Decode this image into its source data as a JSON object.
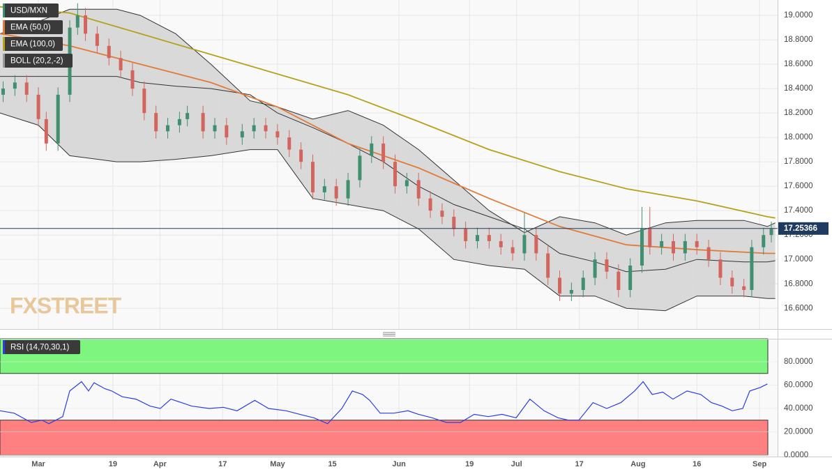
{
  "chart_data": [
    {
      "type": "candlestick",
      "symbol": "USD/MXN",
      "up_color": "#3f8f70",
      "down_color": "#d2665e",
      "x": [
        -9,
        -6,
        -3,
        0,
        2,
        5,
        8,
        10,
        12,
        15,
        18,
        21,
        24,
        27,
        30,
        33,
        36,
        38,
        42,
        45,
        48,
        52,
        55,
        58,
        61,
        64,
        67,
        70,
        73,
        76,
        79,
        82,
        85,
        88,
        91,
        94,
        97,
        100,
        103,
        106,
        109,
        112,
        115,
        118,
        121,
        124,
        127,
        130,
        133,
        136,
        139,
        142,
        145,
        148,
        151,
        154,
        156,
        159,
        162,
        165,
        168,
        171,
        174,
        177,
        180,
        182,
        185,
        187
      ],
      "open": [
        18.35,
        18.4,
        18.45,
        18.35,
        18.15,
        17.95,
        18.35,
        18.9,
        19.0,
        18.85,
        18.75,
        18.65,
        18.55,
        18.4,
        18.2,
        18.05,
        18.1,
        18.15,
        18.2,
        18.05,
        18.1,
        18.0,
        18.05,
        18.1,
        18.05,
        18.0,
        17.9,
        17.8,
        17.55,
        17.6,
        17.5,
        17.65,
        17.85,
        17.95,
        17.8,
        17.6,
        17.65,
        17.5,
        17.4,
        17.35,
        17.25,
        17.15,
        17.2,
        17.15,
        17.1,
        17.05,
        17.2,
        17.05,
        16.85,
        16.72,
        16.75,
        16.85,
        17.0,
        16.9,
        16.75,
        16.95,
        17.25,
        17.1,
        17.15,
        17.05,
        17.15,
        17.1,
        17.0,
        16.85,
        16.78,
        16.75,
        17.1,
        17.2
      ],
      "high": [
        18.46,
        18.51,
        18.51,
        18.41,
        18.21,
        18.41,
        18.96,
        19.1,
        19.06,
        18.91,
        18.81,
        18.71,
        18.61,
        18.46,
        18.26,
        18.16,
        18.21,
        18.26,
        18.26,
        18.16,
        18.16,
        18.11,
        18.16,
        18.16,
        18.11,
        18.06,
        17.96,
        17.86,
        17.66,
        17.66,
        17.71,
        17.91,
        18.01,
        18.01,
        17.86,
        17.71,
        17.71,
        17.56,
        17.46,
        17.41,
        17.31,
        17.26,
        17.26,
        17.21,
        17.16,
        17.38,
        17.26,
        17.11,
        16.91,
        16.81,
        16.91,
        17.06,
        17.06,
        16.96,
        17.01,
        17.43,
        17.43,
        17.21,
        17.21,
        17.21,
        17.21,
        17.16,
        17.06,
        16.91,
        16.84,
        17.16,
        17.26,
        17.31
      ],
      "low": [
        18.29,
        18.34,
        18.29,
        18.09,
        17.89,
        17.89,
        18.29,
        18.84,
        18.79,
        18.69,
        18.59,
        18.49,
        18.34,
        18.14,
        17.99,
        17.99,
        18.04,
        18.09,
        17.99,
        17.99,
        17.94,
        17.94,
        17.99,
        17.99,
        17.94,
        17.84,
        17.74,
        17.49,
        17.49,
        17.44,
        17.44,
        17.59,
        17.79,
        17.74,
        17.54,
        17.54,
        17.44,
        17.34,
        17.29,
        17.19,
        17.09,
        17.09,
        17.09,
        17.04,
        16.99,
        16.99,
        16.99,
        16.79,
        16.66,
        16.66,
        16.69,
        16.79,
        16.84,
        16.69,
        16.69,
        16.89,
        17.04,
        17.04,
        16.99,
        16.99,
        17.04,
        16.94,
        16.79,
        16.72,
        16.69,
        16.69,
        17.04,
        17.14
      ],
      "close": [
        18.4,
        18.45,
        18.35,
        18.15,
        17.95,
        18.35,
        18.9,
        19.0,
        18.85,
        18.75,
        18.65,
        18.55,
        18.4,
        18.2,
        18.05,
        18.1,
        18.15,
        18.2,
        18.05,
        18.1,
        18.0,
        18.05,
        18.1,
        18.05,
        18.0,
        17.9,
        17.8,
        17.55,
        17.6,
        17.5,
        17.65,
        17.85,
        17.95,
        17.8,
        17.6,
        17.65,
        17.5,
        17.4,
        17.35,
        17.25,
        17.15,
        17.2,
        17.15,
        17.1,
        17.05,
        17.2,
        17.05,
        16.85,
        16.72,
        16.75,
        16.85,
        17.0,
        16.9,
        16.75,
        16.95,
        17.25,
        17.1,
        17.15,
        17.05,
        17.15,
        17.1,
        17.0,
        16.85,
        16.78,
        16.75,
        17.1,
        17.2,
        17.25
      ],
      "series": [
        {
          "name": "EMA (50,0)",
          "color": "#e07b39",
          "x": [
            -9.8,
            8,
            26,
            44,
            61,
            79,
            97,
            115,
            133,
            150,
            168,
            186,
            188
          ],
          "values": [
            18.85,
            18.75,
            18.6,
            18.45,
            18.25,
            17.95,
            17.75,
            17.5,
            17.27,
            17.12,
            17.08,
            17.05,
            17.05
          ]
        },
        {
          "name": "EMA (100,0)",
          "color": "#b5a21a",
          "x": [
            -9.8,
            8,
            26,
            44,
            61,
            79,
            97,
            115,
            133,
            150,
            168,
            186,
            188
          ],
          "values": [
            19.07,
            19.02,
            18.85,
            18.68,
            18.52,
            18.35,
            18.13,
            17.9,
            17.72,
            17.58,
            17.48,
            17.35,
            17.34
          ]
        }
      ],
      "bollinger": {
        "name": "BOLL (20,2,-2)",
        "color": "#333333",
        "fill": "#d4d4d4",
        "x": [
          -9.8,
          0,
          8,
          20,
          26,
          35,
          44,
          54,
          61,
          70,
          79,
          88,
          97,
          106,
          115,
          124,
          133,
          142,
          150,
          160,
          168,
          180,
          186,
          188
        ],
        "upper": [
          18.85,
          18.95,
          19.05,
          19.05,
          19.0,
          18.85,
          18.6,
          18.3,
          18.25,
          18.15,
          18.22,
          18.1,
          17.9,
          17.65,
          17.4,
          17.22,
          17.35,
          17.3,
          17.2,
          17.3,
          17.32,
          17.32,
          17.27,
          17.3
        ],
        "middle": [
          18.5,
          18.5,
          18.5,
          18.5,
          18.45,
          18.42,
          18.4,
          18.35,
          18.2,
          18.08,
          17.95,
          17.8,
          17.6,
          17.45,
          17.35,
          17.25,
          17.05,
          16.98,
          16.9,
          16.92,
          17.0,
          16.98,
          16.98,
          16.99
        ],
        "lower": [
          18.2,
          18.1,
          17.85,
          17.8,
          17.8,
          17.82,
          17.85,
          17.9,
          17.9,
          17.5,
          17.45,
          17.4,
          17.25,
          17.0,
          16.95,
          16.92,
          16.7,
          16.7,
          16.6,
          16.58,
          16.7,
          16.7,
          16.68,
          16.68
        ]
      },
      "last_price": 17.25366,
      "xlim": [
        -9.8,
        188.6
      ],
      "xticks": [
        {
          "value": 0,
          "label": "Mar"
        },
        19,
        {
          "value": 31,
          "label": "Apr"
        },
        {
          "value": 47,
          "label": "17"
        },
        {
          "value": 61,
          "label": "May"
        },
        {
          "value": 75,
          "label": "15"
        },
        {
          "value": 92,
          "label": "Jun"
        },
        {
          "value": 110,
          "label": "19"
        },
        {
          "value": 122,
          "label": "Jul"
        },
        {
          "value": 138,
          "label": "17"
        },
        {
          "value": 153,
          "label": "Aug"
        },
        {
          "value": 168,
          "label": "16"
        },
        {
          "value": 184,
          "label": "Sep"
        }
      ],
      "ylim": [
        16.43,
        19.126
      ],
      "yticks": [
        {
          "value": 16.6,
          "label": "16.6000"
        },
        {
          "value": 16.8,
          "label": "16.8000"
        },
        {
          "value": 17.0,
          "label": "17.0000"
        },
        {
          "value": 17.2,
          "label": "17.2000"
        },
        {
          "value": 17.4,
          "label": "17.4000"
        },
        {
          "value": 17.6,
          "label": "17.6000"
        },
        {
          "value": 17.8,
          "label": "17.8000"
        },
        {
          "value": 18.0,
          "label": "18.0000"
        },
        {
          "value": 18.2,
          "label": "18.2000"
        },
        {
          "value": 18.4,
          "label": "18.4000"
        },
        {
          "value": 18.6,
          "label": "18.6000"
        },
        {
          "value": 18.8,
          "label": "18.8000"
        },
        {
          "value": 19.0,
          "label": "19.0000"
        }
      ],
      "grid": true
    },
    {
      "type": "line",
      "name": "RSI (14,70,30,1)",
      "color": "#2c3ee0",
      "x": [
        -9.8,
        -6.2,
        -1.8,
        0.9,
        2.7,
        6.2,
        8,
        11,
        12.8,
        14.2,
        16.9,
        18.7,
        21.4,
        24.9,
        28.5,
        31.1,
        33.8,
        36.5,
        39.1,
        43.6,
        47.2,
        50.7,
        55.2,
        58.7,
        63.2,
        66.7,
        70.3,
        73.8,
        77.4,
        80.1,
        82.7,
        84.5,
        87.2,
        90.7,
        94.3,
        97,
        100.5,
        104.1,
        107.7,
        111.2,
        114.8,
        118.3,
        121.9,
        125.4,
        129,
        132.6,
        135.2,
        137.9,
        141.5,
        145,
        148.6,
        152.1,
        154.3,
        156.6,
        159.3,
        161.9,
        165.5,
        169,
        171.7,
        174.4,
        177,
        179.7,
        181.5,
        184.2,
        186
      ],
      "values": [
        38,
        36,
        28,
        30,
        27,
        33,
        55,
        63,
        55,
        62,
        57,
        55,
        50,
        48,
        42,
        40,
        48,
        45,
        42,
        40,
        41,
        38,
        47,
        40,
        38,
        35,
        32,
        27,
        40,
        55,
        52,
        47,
        36,
        36,
        38,
        35,
        32,
        28,
        28,
        35,
        33,
        35,
        32,
        48,
        38,
        32,
        30,
        30,
        45,
        40,
        45,
        55,
        63,
        52,
        54,
        48,
        55,
        52,
        45,
        42,
        38,
        40,
        55,
        58,
        61
      ],
      "overbought": {
        "from": 70,
        "to": 99.7,
        "color": "#7ef57e"
      },
      "oversold": {
        "from": 0,
        "to": 30,
        "color": "#ff8080"
      },
      "xlim": [
        -9.8,
        188.6
      ],
      "ylim": [
        0,
        99.7
      ],
      "yticks": [
        {
          "value": 0,
          "label": "0.0000"
        },
        {
          "value": 20,
          "label": "20.0000"
        },
        {
          "value": 40,
          "label": "40.0000"
        },
        {
          "value": 60,
          "label": "60.0000"
        },
        {
          "value": 80,
          "label": "80.0000"
        }
      ]
    }
  ],
  "watermark": "FXSTREET"
}
